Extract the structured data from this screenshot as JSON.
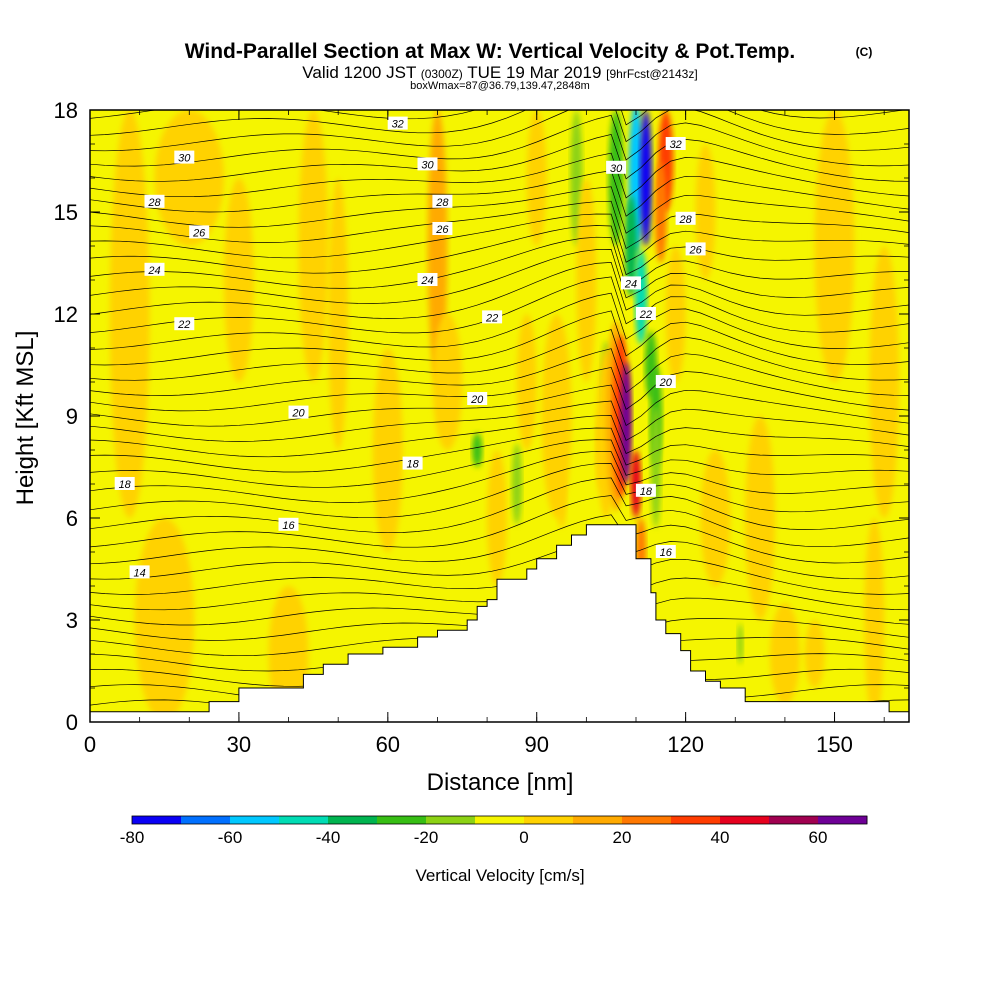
{
  "title": "Wind-Parallel Section at Max W: Vertical Velocity & Pot.Temp.",
  "title_mark": "(C)",
  "subtitle_a": "Valid 1200 JST",
  "subtitle_b": "(0300Z)",
  "subtitle_c": "TUE 19 Mar 2019",
  "subtitle_d": "[9hrFcst@2143z]",
  "subtitle_e": "boxWmax=87@36.79,139.47,2848m",
  "chart_data": {
    "type": "heatmap",
    "xlabel": "Distance [nm]",
    "ylabel": "Height [Kft MSL]",
    "xlim": [
      0,
      165
    ],
    "ylim": [
      0,
      18
    ],
    "x_ticks": [
      0,
      30,
      60,
      90,
      120,
      150
    ],
    "y_ticks": [
      0,
      3,
      6,
      9,
      12,
      15,
      18
    ],
    "colorbar": {
      "label": "Vertical Velocity [cm/s]",
      "min": -80,
      "max": 70,
      "step": 10,
      "tick_labels": [
        -80,
        -60,
        -40,
        -20,
        0,
        20,
        40,
        60
      ],
      "colors": [
        "#0a00f5",
        "#0070ff",
        "#00c8ff",
        "#00dcb4",
        "#00b450",
        "#37be14",
        "#8cd214",
        "#f5f500",
        "#ffd200",
        "#ffaa00",
        "#ff7800",
        "#ff3c00",
        "#e6001e",
        "#a00050",
        "#6e0096"
      ]
    },
    "theta_contours": [
      {
        "value": 14,
        "label_x": 10,
        "label_y": 4.4
      },
      {
        "value": 16,
        "label_x": 40,
        "label_y": 5.8,
        "label_x2": 116,
        "label_y2": 5.0
      },
      {
        "value": 18,
        "label_x": 7,
        "label_y": 7.0,
        "label_x2": 65,
        "label_y2": 7.6,
        "label_x3": 112,
        "label_y3": 6.8
      },
      {
        "value": 20,
        "label_x": 42,
        "label_y": 9.1,
        "label_x2": 78,
        "label_y2": 9.5,
        "label_x3": 116,
        "label_y3": 10.0
      },
      {
        "value": 22,
        "label_x": 19,
        "label_y": 11.7,
        "label_x2": 81,
        "label_y2": 11.9,
        "label_x3": 112,
        "label_y3": 12.0
      },
      {
        "value": 24,
        "label_x": 13,
        "label_y": 13.3,
        "label_x2": 68,
        "label_y2": 13.0,
        "label_x3": 109,
        "label_y3": 12.9
      },
      {
        "value": 26,
        "label_x": 22,
        "label_y": 14.4,
        "label_x2": 71,
        "label_y2": 14.5,
        "label_x3": 122,
        "label_y3": 13.9
      },
      {
        "value": 28,
        "label_x": 13,
        "label_y": 15.3,
        "label_x2": 71,
        "label_y2": 15.3,
        "label_x3": 120,
        "label_y3": 14.8
      },
      {
        "value": 30,
        "label_x": 19,
        "label_y": 16.6,
        "label_x2": 68,
        "label_y2": 16.4,
        "label_x3": 106,
        "label_y3": 16.3
      },
      {
        "value": 32,
        "label_x": 62,
        "label_y": 17.6,
        "label_x2": 118,
        "label_y2": 17.0
      }
    ],
    "terrain": [
      [
        0,
        0.3
      ],
      [
        24,
        0.3
      ],
      [
        24,
        0.6
      ],
      [
        30,
        0.6
      ],
      [
        30,
        1.0
      ],
      [
        43,
        1.0
      ],
      [
        43,
        1.4
      ],
      [
        47,
        1.4
      ],
      [
        47,
        1.7
      ],
      [
        52,
        1.7
      ],
      [
        52,
        2.0
      ],
      [
        59,
        2.0
      ],
      [
        59,
        2.2
      ],
      [
        66,
        2.2
      ],
      [
        66,
        2.5
      ],
      [
        70,
        2.5
      ],
      [
        70,
        2.7
      ],
      [
        76,
        2.7
      ],
      [
        76,
        3.0
      ],
      [
        78,
        3.0
      ],
      [
        78,
        3.4
      ],
      [
        80,
        3.4
      ],
      [
        80,
        3.6
      ],
      [
        82,
        3.6
      ],
      [
        82,
        4.2
      ],
      [
        88,
        4.2
      ],
      [
        88,
        4.5
      ],
      [
        90,
        4.5
      ],
      [
        90,
        4.8
      ],
      [
        94,
        4.8
      ],
      [
        94,
        5.2
      ],
      [
        97,
        5.2
      ],
      [
        97,
        5.5
      ],
      [
        100,
        5.5
      ],
      [
        100,
        5.8
      ],
      [
        110,
        5.8
      ],
      [
        110,
        4.8
      ],
      [
        113,
        4.8
      ],
      [
        113,
        3.8
      ],
      [
        114,
        3.8
      ],
      [
        114,
        3.0
      ],
      [
        116,
        3.0
      ],
      [
        116,
        2.6
      ],
      [
        119,
        2.6
      ],
      [
        119,
        2.1
      ],
      [
        121,
        2.1
      ],
      [
        121,
        1.5
      ],
      [
        124,
        1.5
      ],
      [
        124,
        1.2
      ],
      [
        127,
        1.2
      ],
      [
        127,
        1.0
      ],
      [
        132,
        1.0
      ],
      [
        132,
        0.6
      ],
      [
        161,
        0.6
      ],
      [
        161,
        0.3
      ],
      [
        165,
        0.3
      ]
    ]
  }
}
